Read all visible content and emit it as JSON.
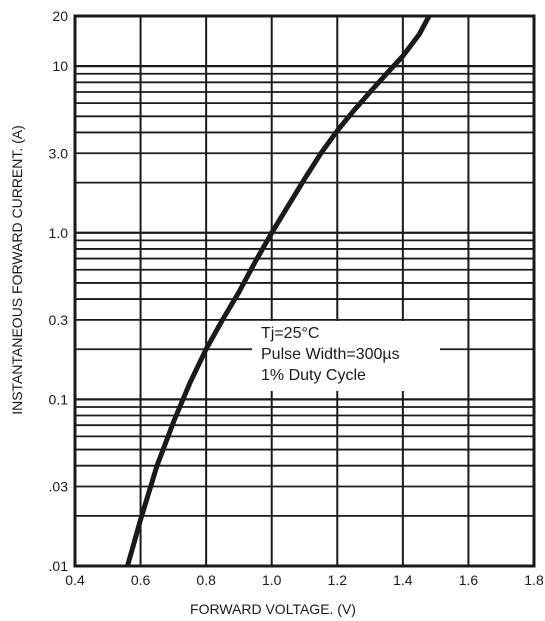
{
  "chart_data": {
    "type": "line",
    "title": "",
    "xlabel": "FORWARD VOLTAGE. (V)",
    "ylabel": "INSTANTANEOUS FORWARD CURRENT. (A)",
    "x_scale": "linear",
    "y_scale": "log",
    "xlim": [
      0.4,
      1.8
    ],
    "ylim": [
      0.01,
      20
    ],
    "x_ticks": [
      "0.4",
      "0.6",
      "0.8",
      "1.0",
      "1.2",
      "1.4",
      "1.6",
      "1.8"
    ],
    "y_ticks": [
      {
        "value": 0.01,
        "label": ".01"
      },
      {
        "value": 0.03,
        "label": ".03"
      },
      {
        "value": 0.1,
        "label": "0.1"
      },
      {
        "value": 0.3,
        "label": "0.3"
      },
      {
        "value": 1,
        "label": "1.0"
      },
      {
        "value": 3,
        "label": "3.0"
      },
      {
        "value": 10,
        "label": "10"
      },
      {
        "value": 20,
        "label": "20"
      }
    ],
    "grid": true,
    "series": [
      {
        "x": [
          0.56,
          0.6,
          0.65,
          0.7,
          0.75,
          0.8,
          0.85,
          0.9,
          0.95,
          1.0,
          1.05,
          1.1,
          1.15,
          1.2,
          1.25,
          1.3,
          1.35,
          1.4,
          1.45,
          1.48
        ],
        "y": [
          0.01,
          0.019,
          0.04,
          0.073,
          0.125,
          0.2,
          0.3,
          0.44,
          0.67,
          1.0,
          1.45,
          2.1,
          3.0,
          4.1,
          5.4,
          7.0,
          9.0,
          11.5,
          15.5,
          20
        ]
      }
    ],
    "annotation": [
      "Tj=25°C",
      "Pulse Width=300µs",
      "1% Duty Cycle"
    ]
  }
}
